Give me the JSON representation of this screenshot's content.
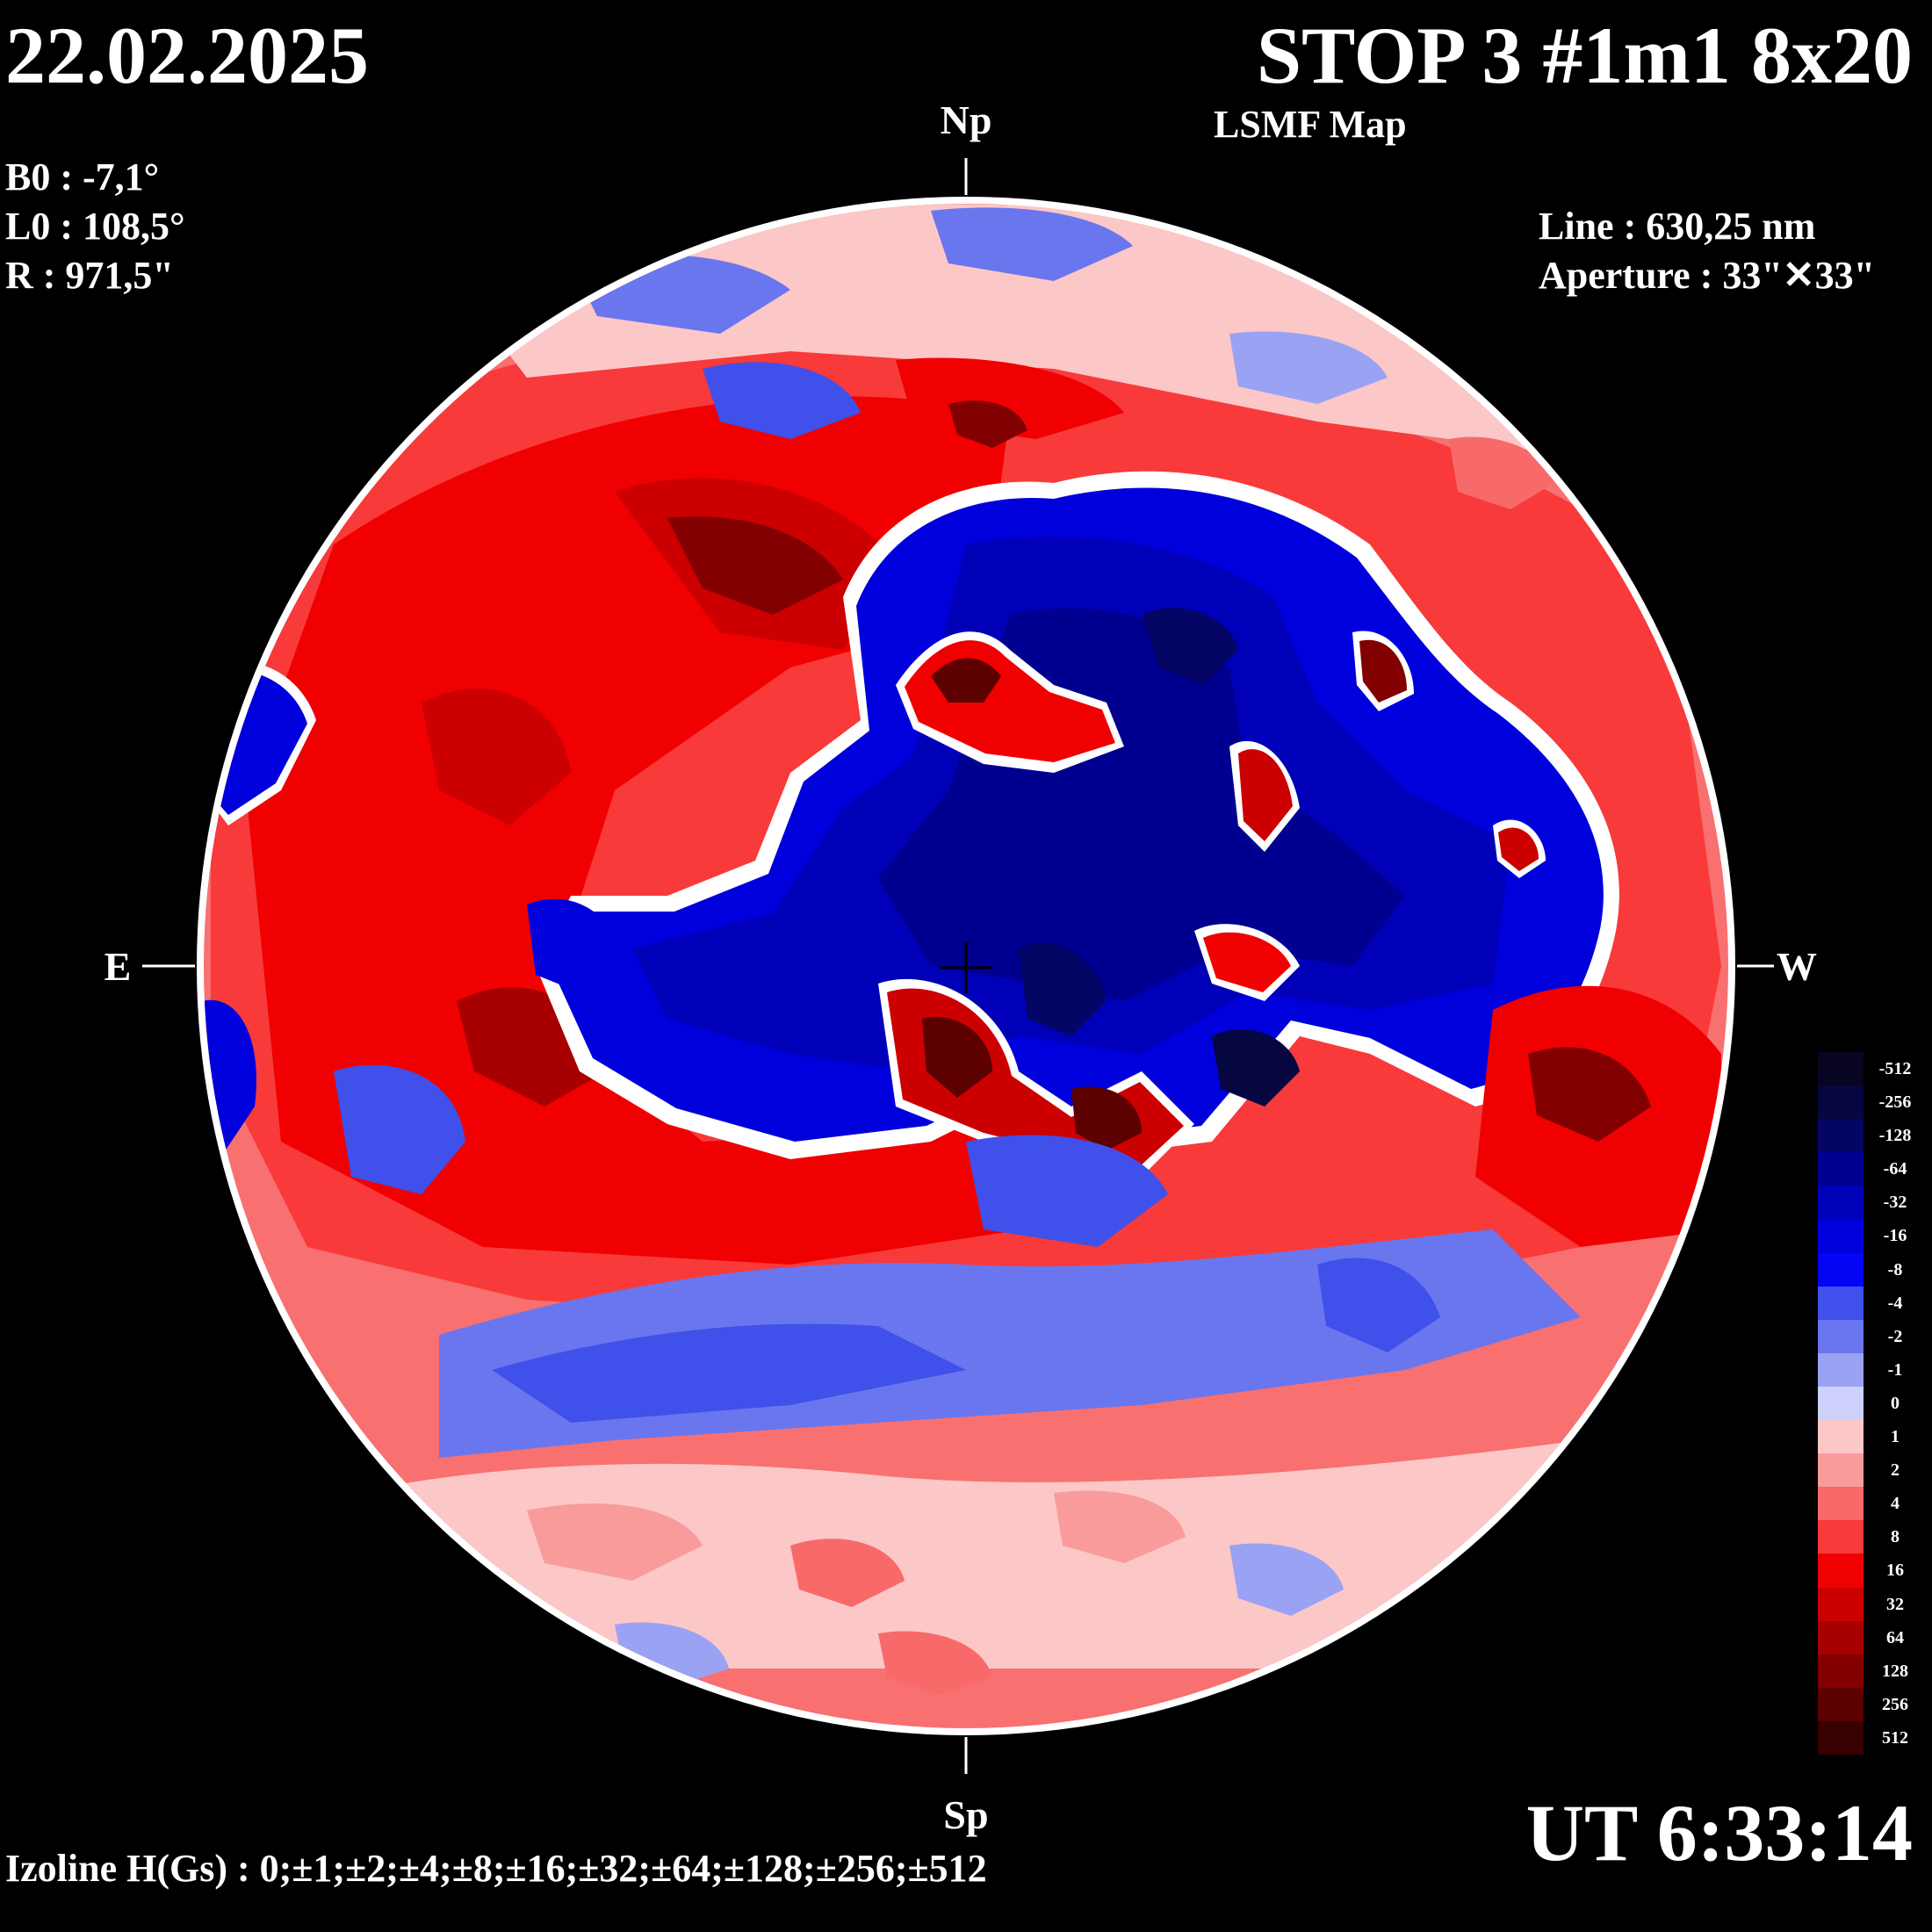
{
  "header": {
    "date": "22.02.2025",
    "title": "STOP 3 #1m1 8x20",
    "subtitle": "LSMF  Map"
  },
  "params": {
    "b0": "B0 : -7,1°",
    "l0": "L0 : 108,5°",
    "r": "R  : 971,5\"",
    "line": "Line :  630,25 nm",
    "aperture": "Aperture : 33\"✕33\""
  },
  "disk": {
    "north": "Np",
    "south": "Sp",
    "east": "E",
    "west": "W"
  },
  "footer": {
    "izoline": "Izoline H(Gs) : 0;±1;±2;±4;±8;±16;±32;±64;±128;±256;±512",
    "ut": "UT 6:33:14"
  },
  "legend": {
    "title": "",
    "levels": [
      {
        "label": "-512",
        "color": "#07051f"
      },
      {
        "label": "-256",
        "color": "#060640"
      },
      {
        "label": "-128",
        "color": "#050566"
      },
      {
        "label": "-64",
        "color": "#000090"
      },
      {
        "label": "-32",
        "color": "#0000b8"
      },
      {
        "label": "-16",
        "color": "#0000dc"
      },
      {
        "label": "-8",
        "color": "#0505f5"
      },
      {
        "label": "-4",
        "color": "#4050ea"
      },
      {
        "label": "-2",
        "color": "#6a76ee"
      },
      {
        "label": "-1",
        "color": "#9aa2f4"
      },
      {
        "label": "0",
        "color": "#cdd0fa"
      },
      {
        "label": "1",
        "color": "#fcc7c7"
      },
      {
        "label": "2",
        "color": "#f99b9b"
      },
      {
        "label": "4",
        "color": "#f86a6a"
      },
      {
        "label": "8",
        "color": "#f83a3a"
      },
      {
        "label": "16",
        "color": "#f00000"
      },
      {
        "label": "32",
        "color": "#cc0000"
      },
      {
        "label": "64",
        "color": "#a80000"
      },
      {
        "label": "128",
        "color": "#820000"
      },
      {
        "label": "256",
        "color": "#5c0000"
      },
      {
        "label": "512",
        "color": "#380000"
      }
    ]
  },
  "colors": {
    "background": "#000000",
    "positive_main": "#f01010",
    "negative_main": "#0000d0",
    "zero_line": "#ffffff"
  }
}
